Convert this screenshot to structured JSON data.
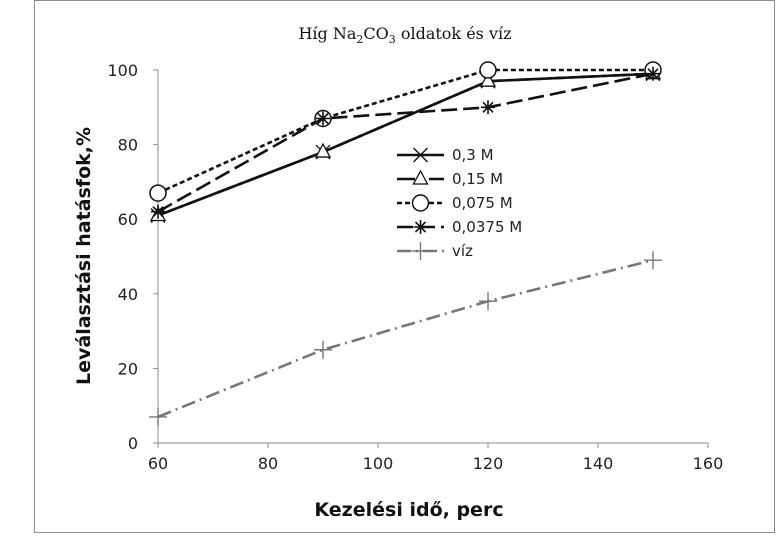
{
  "chart_data": {
    "type": "line",
    "title": {
      "prefix": "Híg  Na",
      "sub1": "2",
      "mid": "CO",
      "sub2": "3",
      "suffix": " oldatok és víz"
    },
    "xlabel": "Kezelési idő, perc",
    "ylabel": "Leválasztási hatásfok,%",
    "xlim": [
      60,
      160
    ],
    "ylim": [
      0,
      100
    ],
    "xticks": [
      60,
      80,
      100,
      120,
      140,
      160
    ],
    "yticks": [
      0,
      20,
      40,
      60,
      80,
      100
    ],
    "grid": false,
    "legend_position": "center",
    "x": [
      60,
      90,
      120,
      150
    ],
    "series": [
      {
        "name": "0,3 M",
        "values": [
          61,
          78,
          97,
          99
        ],
        "marker": "x",
        "dash": "",
        "color": "#111111"
      },
      {
        "name": "0,15 M",
        "values": [
          61,
          78,
          97,
          99
        ],
        "marker": "triangle",
        "dash": "18,5,4,5",
        "color": "#111111"
      },
      {
        "name": "0,075 M",
        "values": [
          67,
          87,
          100,
          100
        ],
        "marker": "circle",
        "dash": "5,3",
        "color": "#111111"
      },
      {
        "name": "0,0375 M",
        "values": [
          62,
          87,
          90,
          99
        ],
        "marker": "star",
        "dash": "16,6",
        "color": "#111111"
      },
      {
        "name": "víz",
        "values": [
          7,
          25,
          38,
          49
        ],
        "marker": "plus",
        "dash": "14,5,2,5",
        "color": "#777777"
      }
    ]
  }
}
